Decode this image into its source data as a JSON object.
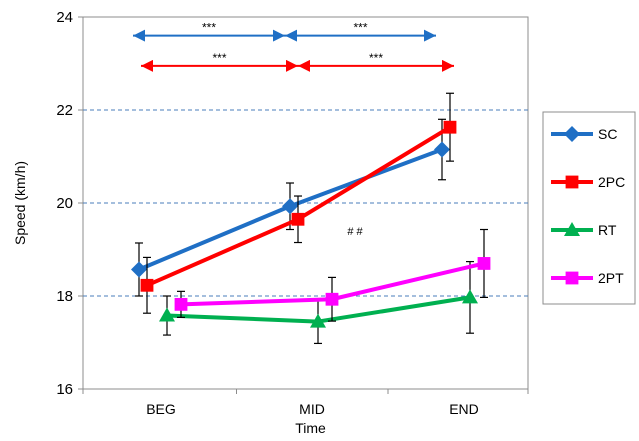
{
  "chart_data": {
    "type": "line",
    "categories": [
      "BEG",
      "MID",
      "END"
    ],
    "xlabel": "Time",
    "ylabel": "Speed (km/h)",
    "ylim": [
      16,
      24
    ],
    "yticks": [
      16,
      18,
      20,
      22,
      24
    ],
    "grid": "dashed horizontal lines at 18, 20 and 22",
    "legend_position": "right",
    "series": [
      {
        "name": "SC",
        "color": "#1f6fc5",
        "marker": "diamond",
        "values": [
          18.57,
          19.93,
          21.15
        ],
        "err": [
          0.57,
          0.5,
          0.65
        ]
      },
      {
        "name": "2PC",
        "color": "#ff0000",
        "marker": "square",
        "values": [
          18.23,
          19.65,
          21.63
        ],
        "err": [
          0.6,
          0.5,
          0.73
        ]
      },
      {
        "name": "RT",
        "color": "#00b050",
        "marker": "triangle",
        "values": [
          17.58,
          17.45,
          17.97
        ],
        "err": [
          0.42,
          0.47,
          0.77
        ]
      },
      {
        "name": "2PT",
        "color": "#ff00ff",
        "marker": "square",
        "values": [
          17.82,
          17.93,
          18.7
        ],
        "err": [
          0.28,
          0.47,
          0.73
        ]
      }
    ],
    "annotations": [
      {
        "text": "***",
        "from": "BEG",
        "to": "MID",
        "level": 23.6,
        "color": "#1f6fc5"
      },
      {
        "text": "***",
        "from": "MID",
        "to": "END",
        "level": 23.6,
        "color": "#1f6fc5"
      },
      {
        "text": "***",
        "from": "BEG",
        "to": "MID",
        "level": 22.95,
        "color": "#ff0000"
      },
      {
        "text": "***",
        "from": "MID",
        "to": "END",
        "level": 22.95,
        "color": "#ff0000"
      },
      {
        "text": "# #",
        "x": "MID",
        "level": 19.4
      }
    ]
  }
}
